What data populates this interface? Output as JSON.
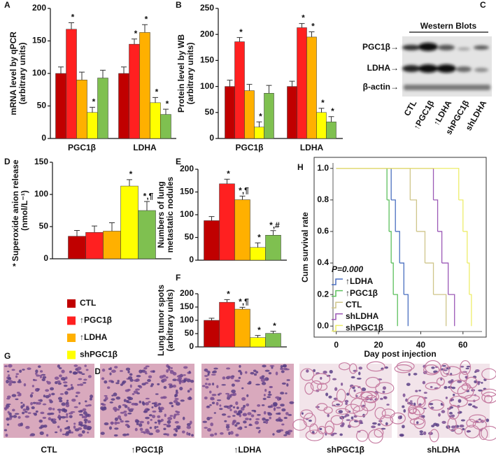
{
  "panel_labels": [
    "A",
    "B",
    "C",
    "D",
    "E",
    "F",
    "G",
    "H"
  ],
  "legend": [
    {
      "name": "CTL",
      "color": "#c00000"
    },
    {
      "name": "↑PGC1β",
      "color": "#ff2020"
    },
    {
      "name": "↑LDHA",
      "color": "#ffb000"
    },
    {
      "name": "shPGC1β",
      "color": "#ffff00"
    },
    {
      "name": "shLDHA",
      "color": "#7fc050"
    }
  ],
  "chart_data": [
    {
      "type": "grouped_bar",
      "ylabel": [
        "mRNA level  by qPCR",
        "(arbitrary units)"
      ],
      "categories": [
        "PGC1β",
        "LDHA"
      ],
      "ylim": [
        0,
        200
      ],
      "yticks": [
        0,
        50,
        100,
        150,
        200
      ],
      "series": [
        {
          "color": "#c00000",
          "values": [
            100,
            100
          ],
          "errors": [
            10,
            10
          ],
          "labels": [
            null,
            null
          ]
        },
        {
          "color": "#ff2020",
          "values": [
            168,
            145
          ],
          "errors": [
            10,
            8
          ],
          "labels": [
            "*",
            "*"
          ]
        },
        {
          "color": "#ffb000",
          "values": [
            90,
            163
          ],
          "errors": [
            12,
            12
          ],
          "labels": [
            null,
            "*"
          ]
        },
        {
          "color": "#ffff00",
          "values": [
            40,
            55
          ],
          "errors": [
            8,
            8
          ],
          "labels": [
            "*",
            "*"
          ]
        },
        {
          "color": "#7fc050",
          "values": [
            93,
            37
          ],
          "errors": [
            12,
            8
          ],
          "labels": [
            null,
            "*"
          ]
        }
      ]
    },
    {
      "type": "grouped_bar",
      "ylabel": [
        "Protein level by WB",
        "(arbitrary units)"
      ],
      "categories": [
        "PGC1β",
        "LDHA"
      ],
      "ylim": [
        0,
        250
      ],
      "yticks": [
        0,
        50,
        100,
        150,
        200,
        250
      ],
      "series": [
        {
          "color": "#c00000",
          "values": [
            100,
            100
          ],
          "errors": [
            12,
            10
          ],
          "labels": [
            null,
            null
          ]
        },
        {
          "color": "#ff2020",
          "values": [
            186,
            213
          ],
          "errors": [
            8,
            8
          ],
          "labels": [
            "*",
            "*"
          ]
        },
        {
          "color": "#ffb000",
          "values": [
            92,
            195
          ],
          "errors": [
            12,
            10
          ],
          "labels": [
            null,
            "*"
          ]
        },
        {
          "color": "#ffff00",
          "values": [
            22,
            50
          ],
          "errors": [
            10,
            8
          ],
          "labels": [
            "*",
            "*"
          ]
        },
        {
          "color": "#7fc050",
          "values": [
            87,
            32
          ],
          "errors": [
            15,
            10
          ],
          "labels": [
            null,
            "*"
          ]
        }
      ]
    },
    {
      "type": "bar",
      "ylabel": [
        "Superoxide anion release",
        "(nmol/L⁻¹)"
      ],
      "annotation": "*",
      "ylim": [
        0,
        150
      ],
      "yticks": [
        0,
        50,
        100,
        150
      ],
      "values": [
        35,
        41,
        43,
        113,
        75
      ],
      "errors": [
        9,
        10,
        13,
        10,
        14
      ],
      "colors": [
        "#c00000",
        "#ff2020",
        "#ffb000",
        "#ffff00",
        "#7fc050"
      ],
      "labels": [
        null,
        null,
        null,
        "*",
        "*,¶"
      ]
    },
    {
      "type": "bar",
      "ylabel": [
        "Numbers of lung",
        "metastatic nodules"
      ],
      "ylim": [
        0,
        200
      ],
      "yticks": [
        0,
        50,
        100,
        150,
        200
      ],
      "values": [
        87,
        168,
        133,
        28,
        55
      ],
      "errors": [
        9,
        10,
        8,
        10,
        10
      ],
      "colors": [
        "#c00000",
        "#ff2020",
        "#ffb000",
        "#ffff00",
        "#7fc050"
      ],
      "labels": [
        null,
        "*",
        "*,¶",
        "*",
        "*,#"
      ]
    },
    {
      "type": "bar",
      "ylabel": [
        "Lung tumor spots",
        "(arbitrary units)"
      ],
      "ylim": [
        0,
        200
      ],
      "yticks": [
        0,
        50,
        100,
        150,
        200
      ],
      "values": [
        100,
        168,
        142,
        35,
        51
      ],
      "errors": [
        8,
        10,
        7,
        8,
        8
      ],
      "colors": [
        "#c00000",
        "#ff2020",
        "#ffb000",
        "#ffff00",
        "#7fc050"
      ],
      "labels": [
        null,
        "*",
        "*,¶",
        "*",
        "*"
      ]
    },
    {
      "type": "step",
      "xlabel": "Day post injection",
      "ylabel": "Cum survival rate",
      "legend_title": "P=0.000",
      "xlim": [
        -10.5,
        71
      ],
      "ylim": [
        -0.07,
        1.07
      ],
      "xticks": [
        0,
        20,
        40,
        60
      ],
      "yticks": [
        {
          "value": 0,
          "label": "0.0"
        },
        {
          "value": 0.2,
          "label": "0.2"
        },
        {
          "value": 0.4,
          "label": "0.4"
        },
        {
          "value": 0.6,
          "label": "0.6"
        },
        {
          "value": 0.8,
          "label": "0.8"
        },
        {
          "value": 1,
          "label": "1.0"
        }
      ],
      "series": [
        {
          "name": "↑LDHA",
          "color": "#4a6fc0",
          "x": [
            0,
            26,
            28,
            30,
            32,
            34
          ],
          "values": [
            1,
            0.8,
            0.6,
            0.4,
            0.2,
            0
          ]
        },
        {
          "name": "↑PGC1β",
          "color": "#5cc05c",
          "x": [
            0,
            24,
            25,
            26,
            27,
            29
          ],
          "values": [
            1,
            0.8,
            0.6,
            0.4,
            0.2,
            0
          ]
        },
        {
          "name": "CTL",
          "color": "#cfc58a",
          "x": [
            0,
            35,
            38,
            42,
            46,
            52
          ],
          "values": [
            1,
            0.8,
            0.6,
            0.4,
            0.2,
            0
          ]
        },
        {
          "name": "shLDHA",
          "color": "#9b59b6",
          "x": [
            0,
            46,
            48,
            50,
            53,
            56
          ],
          "values": [
            1,
            0.8,
            0.6,
            0.4,
            0.2,
            0
          ]
        },
        {
          "name": "shPGC1β",
          "color": "#eded6a",
          "x": [
            0,
            58,
            60,
            62,
            63,
            64
          ],
          "values": [
            1,
            0.8,
            0.6,
            0.4,
            0.2,
            0
          ]
        }
      ]
    }
  ],
  "western_blot": {
    "title": "Western Blots",
    "rows": [
      "PGC1β→",
      "LDHA→",
      "β-actin→"
    ],
    "lanes": [
      "CTL",
      "↑PGC1β",
      "↑LDHA",
      "shPGC1β",
      "shLDHA"
    ]
  },
  "histology": {
    "labels": [
      "CTL",
      "↑PGC1β",
      "↑LDHA",
      "shPGC1β",
      "shLDHA"
    ]
  }
}
